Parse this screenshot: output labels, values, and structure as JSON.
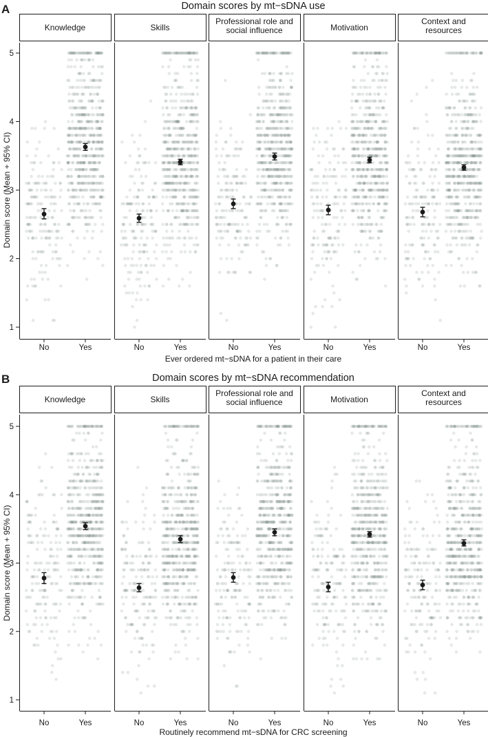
{
  "chart_data": [
    {
      "panel_letter": "A",
      "type": "scatter",
      "title": "Domain scores by mt−sDNA use",
      "xlabel": "Ever ordered mt−sDNA for a patient in their care",
      "ylabel": "Domain score (Mean + 95% CI)",
      "ylim": [
        1,
        5
      ],
      "yticks": [
        "1",
        "2",
        "3",
        "4",
        "5"
      ],
      "categories": [
        "No",
        "Yes"
      ],
      "facets": [
        {
          "label": "Knowledge",
          "mean": [
            2.65,
            3.63
          ],
          "ci_low": [
            2.58,
            3.58
          ],
          "ci_high": [
            2.73,
            3.68
          ]
        },
        {
          "label": "Skills",
          "mean": [
            2.59,
            3.41
          ],
          "ci_low": [
            2.53,
            3.37
          ],
          "ci_high": [
            2.65,
            3.45
          ]
        },
        {
          "label": "Professional role and social influence",
          "mean": [
            2.8,
            3.49
          ],
          "ci_low": [
            2.73,
            3.44
          ],
          "ci_high": [
            2.87,
            3.54
          ]
        },
        {
          "label": "Motivation",
          "mean": [
            2.71,
            3.44
          ],
          "ci_low": [
            2.64,
            3.4
          ],
          "ci_high": [
            2.78,
            3.48
          ]
        },
        {
          "label": "Context and resources",
          "mean": [
            2.68,
            3.33
          ],
          "ci_low": [
            2.61,
            3.29
          ],
          "ci_high": [
            2.75,
            3.37
          ]
        }
      ]
    },
    {
      "panel_letter": "B",
      "type": "scatter",
      "title": "Domain scores by mt−sDNA recommendation",
      "xlabel": "Routinely recommend mt−sDNA for CRC screening",
      "ylabel": "Domain score (Mean + 95% CI)",
      "ylim": [
        1,
        5
      ],
      "yticks": [
        "1",
        "2",
        "3",
        "4",
        "5"
      ],
      "categories": [
        "No",
        "Yes"
      ],
      "facets": [
        {
          "label": "Knowledge",
          "mean": [
            2.78,
            3.54
          ],
          "ci_low": [
            2.7,
            3.49
          ],
          "ci_high": [
            2.86,
            3.59
          ]
        },
        {
          "label": "Skills",
          "mean": [
            2.64,
            3.35
          ],
          "ci_low": [
            2.58,
            3.3
          ],
          "ci_high": [
            2.7,
            3.4
          ]
        },
        {
          "label": "Professional role and social influence",
          "mean": [
            2.79,
            3.45
          ],
          "ci_low": [
            2.72,
            3.4
          ],
          "ci_high": [
            2.86,
            3.5
          ]
        },
        {
          "label": "Motivation",
          "mean": [
            2.65,
            3.42
          ],
          "ci_low": [
            2.58,
            3.38
          ],
          "ci_high": [
            2.72,
            3.46
          ]
        },
        {
          "label": "Context and resources",
          "mean": [
            2.68,
            3.29
          ],
          "ci_low": [
            2.61,
            3.25
          ],
          "ci_high": [
            2.75,
            3.34
          ]
        }
      ]
    }
  ],
  "colors": {
    "points": "#8c9a94",
    "summary": "#1a1a1a",
    "strip_border": "#1a1a1a",
    "axis": "#1a1a1a"
  }
}
